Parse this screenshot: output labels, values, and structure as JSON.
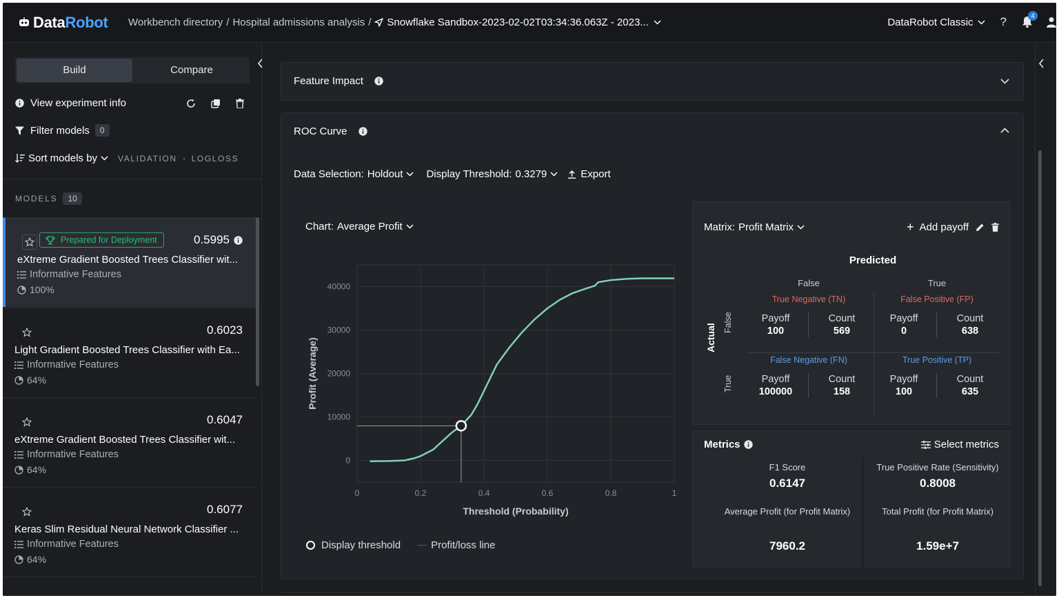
{
  "header": {
    "logo_part1": "Data",
    "logo_part2": "Robot",
    "breadcrumb": [
      "Workbench directory",
      "Hospital admissions analysis"
    ],
    "breadcrumb_sep": "/",
    "current_dataset": "Snowflake Sandbox-2023-02-02T03:34:36.063Z - 2023...",
    "classic_label": "DataRobot Classic",
    "help_label": "?",
    "notification_count": "4"
  },
  "left": {
    "tabs": [
      "Build",
      "Compare"
    ],
    "view_info_label": "View experiment info",
    "filter_label": "Filter models",
    "filter_count": "0",
    "sort_label": "Sort models by",
    "sort_partition": "VALIDATION",
    "sort_metric": "LOGLOSS",
    "models_label": "MODELS",
    "models_count": "10",
    "models": [
      {
        "badge": "Prepared for Deployment",
        "score": "0.5995",
        "name": "eXtreme Gradient Boosted Trees Classifier wit...",
        "features": "Informative Features",
        "sample": "100%"
      },
      {
        "score": "0.6023",
        "name": "Light Gradient Boosted Trees Classifier with Ea...",
        "features": "Informative Features",
        "sample": "64%"
      },
      {
        "score": "0.6047",
        "name": "eXtreme Gradient Boosted Trees Classifier wit...",
        "features": "Informative Features",
        "sample": "64%"
      },
      {
        "score": "0.6077",
        "name": "Keras Slim Residual Neural Network Classifier ...",
        "features": "Informative Features",
        "sample": "64%"
      }
    ]
  },
  "main": {
    "feature_impact_title": "Feature Impact",
    "roc_title": "ROC Curve",
    "data_selection_label": "Data Selection:",
    "data_selection_value": "Holdout",
    "threshold_label": "Display Threshold:",
    "threshold_value": "0.3279",
    "export_label": "Export",
    "chart_label": "Chart:",
    "chart_value": "Average Profit",
    "legend_threshold": "Display threshold",
    "legend_line": "Profit/loss line",
    "matrix_label": "Matrix:",
    "matrix_value": "Profit Matrix",
    "add_payoff_label": "Add payoff",
    "predicted_label": "Predicted",
    "actual_label": "Actual",
    "col_false": "False",
    "col_true": "True",
    "row_false": "False",
    "row_true": "True",
    "payoff_label": "Payoff",
    "count_label": "Count",
    "cells": {
      "tn": {
        "title": "True Negative (TN)",
        "payoff": "100",
        "count": "569"
      },
      "fp": {
        "title": "False Positive (FP)",
        "payoff": "0",
        "count": "638"
      },
      "fn": {
        "title": "False Negative (FN)",
        "payoff": "100000",
        "count": "158"
      },
      "tp": {
        "title": "True Positive (TP)",
        "payoff": "100",
        "count": "635"
      }
    },
    "metrics_label": "Metrics",
    "select_metrics_label": "Select metrics",
    "metrics": [
      {
        "name": "F1 Score",
        "value": "0.6147"
      },
      {
        "name": "True Positive Rate (Sensitivity)",
        "value": "0.8008"
      },
      {
        "name": "Average Profit (for Profit Matrix)",
        "value": "7960.2"
      },
      {
        "name": "Total Profit (for Profit Matrix)",
        "value": "1.59e+7"
      }
    ]
  },
  "chart_data": {
    "type": "line",
    "xlabel": "Threshold (Probability)",
    "ylabel": "Profit (Average)",
    "xlim": [
      0,
      1
    ],
    "ylim": [
      -5000,
      45000
    ],
    "x_ticks": [
      "0",
      "0.2",
      "0.4",
      "0.6",
      "0.8",
      "1"
    ],
    "y_ticks": [
      "0",
      "10000",
      "20000",
      "30000",
      "40000"
    ],
    "grid": true,
    "line_color": "#7fd1bc",
    "series": [
      {
        "x": [
          0.04,
          0.1,
          0.15,
          0.18,
          0.2,
          0.24,
          0.27,
          0.3,
          0.3279,
          0.36,
          0.38,
          0.4,
          0.42,
          0.44,
          0.48,
          0.52,
          0.56,
          0.6,
          0.64,
          0.68,
          0.72,
          0.75,
          0.76,
          0.8,
          0.85,
          0.9,
          0.95,
          1.0
        ],
        "y": [
          -200,
          -150,
          0,
          500,
          1000,
          2500,
          4500,
          6500,
          7960,
          10500,
          13000,
          16000,
          19000,
          22000,
          26000,
          29500,
          32500,
          35000,
          37000,
          38500,
          39500,
          40200,
          41000,
          41500,
          41800,
          41900,
          41900,
          41900
        ]
      }
    ],
    "threshold": {
      "x": 0.3279,
      "y": 7960.2
    }
  },
  "colors": {
    "accent": "#3d8ae6",
    "deploy_green": "#33b877",
    "tn_fp_red": "#e06a5a",
    "fn_tp_blue": "#5a9fe6",
    "curve": "#7fd1bc"
  }
}
